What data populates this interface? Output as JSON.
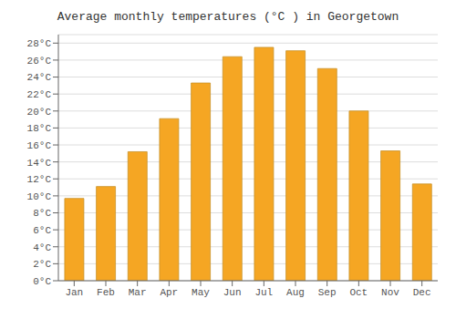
{
  "chart_data": {
    "type": "bar",
    "title": "Average monthly temperatures (°C ) in Georgetown",
    "categories": [
      "Jan",
      "Feb",
      "Mar",
      "Apr",
      "May",
      "Jun",
      "Jul",
      "Aug",
      "Sep",
      "Oct",
      "Nov",
      "Dec"
    ],
    "values": [
      9.7,
      11.1,
      15.2,
      19.1,
      23.3,
      26.4,
      27.5,
      27.1,
      25.0,
      20.0,
      15.3,
      11.4
    ],
    "color": "#F5A623",
    "ylim": [
      0,
      29
    ],
    "yticks": [
      {
        "value": 0,
        "label": "0°C"
      },
      {
        "value": 2,
        "label": "2°C"
      },
      {
        "value": 4,
        "label": "4°C"
      },
      {
        "value": 6,
        "label": "6°C"
      },
      {
        "value": 8,
        "label": "8°C"
      },
      {
        "value": 10,
        "label": "10°C"
      },
      {
        "value": 12,
        "label": "12°C"
      },
      {
        "value": 14,
        "label": "14°C"
      },
      {
        "value": 16,
        "label": "16°C"
      },
      {
        "value": 18,
        "label": "18°C"
      },
      {
        "value": 20,
        "label": "20°C"
      },
      {
        "value": 22,
        "label": "22°C"
      },
      {
        "value": 24,
        "label": "24°C"
      },
      {
        "value": 26,
        "label": "26°C"
      },
      {
        "value": 28,
        "label": "28°C"
      }
    ],
    "grid": true
  }
}
